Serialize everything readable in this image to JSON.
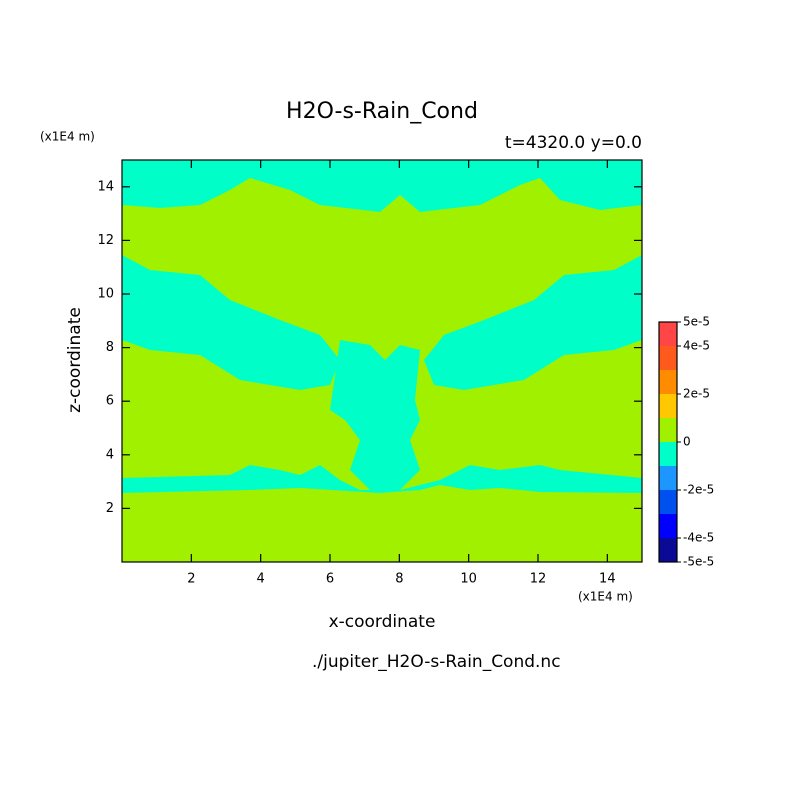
{
  "chart_data": {
    "type": "contour",
    "title": "H2O-s-Rain_Cond",
    "subtitle": "t=4320.0 y=0.0",
    "xlabel": "x-coordinate",
    "ylabel": "z-coordinate",
    "x_unit": "(x1E4 m)",
    "y_unit": "(x1E4 m)",
    "source": "./jupiter_H2O-s-Rain_Cond.nc",
    "xlim": [
      0,
      15
    ],
    "ylim": [
      0,
      15
    ],
    "xticks": [
      2,
      4,
      6,
      8,
      10,
      12,
      14
    ],
    "yticks": [
      2,
      4,
      6,
      8,
      10,
      12,
      14
    ],
    "colorbar": {
      "levels": [
        -5e-05,
        -4e-05,
        -3e-05,
        -2e-05,
        -1e-05,
        0,
        1e-05,
        2e-05,
        3e-05,
        4e-05,
        5e-05
      ],
      "colors": [
        "#0a0a96",
        "#0000ff",
        "#0050f0",
        "#1e96ff",
        "#00ffc8",
        "#a0f000",
        "#ffc800",
        "#ff8c00",
        "#ff5a1e",
        "#ff4646"
      ],
      "ticks": [
        {
          "value": 5e-05,
          "label": "5e-5"
        },
        {
          "value": 4e-05,
          "label": "4e-5"
        },
        {
          "value": 2e-05,
          "label": "2e-5"
        },
        0,
        {
          "value": -2e-05,
          "label": "-2e-5"
        },
        {
          "value": -4e-05,
          "label": "-4e-5"
        },
        {
          "value": -5e-05,
          "label": "-5e-5"
        }
      ]
    }
  }
}
